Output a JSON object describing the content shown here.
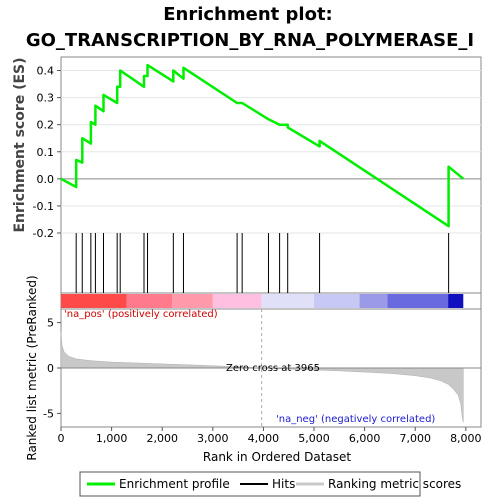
{
  "chart_data": {
    "type": "line",
    "title_line1": "Enrichment plot:",
    "title_line2": "GO_TRANSCRIPTION_BY_RNA_POLYMERASE_I",
    "top_panel": {
      "ylabel": "Enrichment score (ES)",
      "ylim": [
        -0.2,
        0.45
      ],
      "yticks": [
        -0.2,
        -0.1,
        0.0,
        0.1,
        0.2,
        0.3,
        0.4
      ],
      "ytick_labels": [
        "-0.2",
        "-0.1",
        "0.0",
        "0.1",
        "0.2",
        "0.3",
        "0.4"
      ],
      "series": [
        {
          "name": "Enrichment profile",
          "color": "#00ee00",
          "x": [
            0,
            300,
            300,
            420,
            420,
            590,
            590,
            680,
            680,
            840,
            840,
            1110,
            1110,
            1170,
            1170,
            1640,
            1640,
            1710,
            1710,
            2220,
            2220,
            2420,
            2420,
            3480,
            3480,
            3580,
            3580,
            4100,
            4100,
            4320,
            4320,
            4480,
            4480,
            5110,
            5110,
            7660,
            7660,
            7950
          ],
          "y": [
            0.0,
            -0.03,
            0.07,
            0.06,
            0.15,
            0.13,
            0.21,
            0.2,
            0.27,
            0.25,
            0.31,
            0.28,
            0.34,
            0.34,
            0.4,
            0.34,
            0.38,
            0.38,
            0.42,
            0.36,
            0.4,
            0.37,
            0.41,
            0.28,
            0.28,
            0.28,
            0.28,
            0.22,
            0.22,
            0.2,
            0.2,
            0.2,
            0.19,
            0.12,
            0.14,
            -0.175,
            0.045,
            0.0
          ]
        }
      ]
    },
    "hits": [
      300,
      420,
      590,
      680,
      840,
      1110,
      1170,
      1640,
      1710,
      2220,
      2420,
      3480,
      3580,
      4100,
      4320,
      4480,
      5110,
      7660
    ],
    "ranking_bar": {
      "segments": [
        {
          "start": 0,
          "end": 1300,
          "color": "#ff4a4a"
        },
        {
          "start": 1300,
          "end": 2200,
          "color": "#ff7a8a"
        },
        {
          "start": 2200,
          "end": 3000,
          "color": "#ff9aaa"
        },
        {
          "start": 3000,
          "end": 3965,
          "color": "#ffbfe0"
        },
        {
          "start": 3965,
          "end": 5000,
          "color": "#e0e0f8"
        },
        {
          "start": 5000,
          "end": 5900,
          "color": "#c8c8f4"
        },
        {
          "start": 5900,
          "end": 6450,
          "color": "#9a9ae8"
        },
        {
          "start": 6450,
          "end": 7650,
          "color": "#6a6ae0"
        },
        {
          "start": 7650,
          "end": 7950,
          "color": "#1010c0"
        }
      ]
    },
    "bottom_panel": {
      "ylabel": "Ranked list metric (PreRanked)",
      "xlabel": "Rank in Ordered Dataset",
      "ylim": [
        -6.5,
        6.5
      ],
      "yticks": [
        -5,
        0,
        5
      ],
      "ytick_labels": [
        "-5",
        "0",
        "5"
      ],
      "xlim": [
        0,
        8300
      ],
      "xticks": [
        0,
        1000,
        2000,
        3000,
        4000,
        5000,
        6000,
        7000,
        8000
      ],
      "xtick_labels": [
        "0",
        "1,000",
        "2,000",
        "3,000",
        "4,000",
        "5,000",
        "6,000",
        "7,000",
        "8,000"
      ],
      "metric_profile": {
        "x": [
          0,
          20,
          60,
          150,
          300,
          600,
          1000,
          1500,
          2000,
          2500,
          3000,
          3500,
          3965,
          4500,
          5000,
          5500,
          6000,
          6500,
          7000,
          7300,
          7500,
          7650,
          7750,
          7850,
          7900,
          7930,
          7950
        ],
        "y": [
          4.0,
          2.5,
          1.8,
          1.3,
          1.0,
          0.8,
          0.65,
          0.55,
          0.45,
          0.35,
          0.25,
          0.12,
          0.0,
          -0.12,
          -0.22,
          -0.32,
          -0.45,
          -0.6,
          -0.85,
          -1.1,
          -1.4,
          -1.8,
          -2.3,
          -3.0,
          -4.0,
          -5.5,
          -6.0
        ]
      },
      "annotations": {
        "pos": "'na_pos' (positively correlated)",
        "neg": "'na_neg' (negatively correlated)",
        "zero": "Zero cross at 3965"
      },
      "zero_cross": 3965
    },
    "legend": [
      {
        "label": "Enrichment profile",
        "color": "#00ee00"
      },
      {
        "label": "Hits",
        "color": "#000000"
      },
      {
        "label": "Ranking metric scores",
        "color": "#c8c8c8"
      }
    ]
  }
}
